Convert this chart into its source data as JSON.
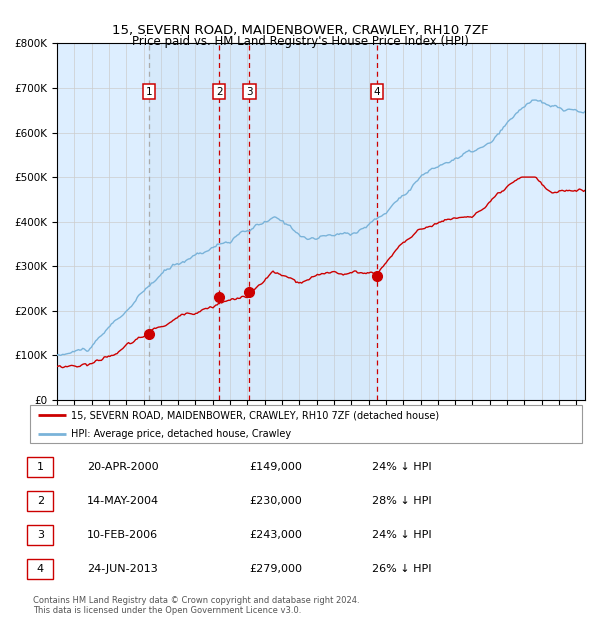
{
  "title_line1": "15, SEVERN ROAD, MAIDENBOWER, CRAWLEY, RH10 7ZF",
  "title_line2": "Price paid vs. HM Land Registry's House Price Index (HPI)",
  "hpi_label": "HPI: Average price, detached house, Crawley",
  "property_label": "15, SEVERN ROAD, MAIDENBOWER, CRAWLEY, RH10 7ZF (detached house)",
  "footer": "Contains HM Land Registry data © Crown copyright and database right 2024.\nThis data is licensed under the Open Government Licence v3.0.",
  "sale_dates": [
    2000.3,
    2004.37,
    2006.11,
    2013.48
  ],
  "sale_prices": [
    149000,
    230000,
    243000,
    279000
  ],
  "sale_labels": [
    "1",
    "2",
    "3",
    "4"
  ],
  "sale_table": [
    [
      "1",
      "20-APR-2000",
      "£149,000",
      "24% ↓ HPI"
    ],
    [
      "2",
      "14-MAY-2004",
      "£230,000",
      "28% ↓ HPI"
    ],
    [
      "3",
      "10-FEB-2006",
      "£243,000",
      "24% ↓ HPI"
    ],
    [
      "4",
      "24-JUN-2013",
      "£279,000",
      "26% ↓ HPI"
    ]
  ],
  "hpi_color": "#7ab3d9",
  "property_color": "#cc0000",
  "background_color": "#ddeeff",
  "plot_bg": "#ffffff",
  "grid_color": "#cccccc",
  "vline_gray_color": "#aaaaaa",
  "vline_red_color": "#cc0000",
  "ylim": [
    0,
    800000
  ],
  "xmin": 1995.0,
  "xmax": 2025.5,
  "yticks": [
    0,
    100000,
    200000,
    300000,
    400000,
    500000,
    600000,
    700000,
    800000
  ]
}
